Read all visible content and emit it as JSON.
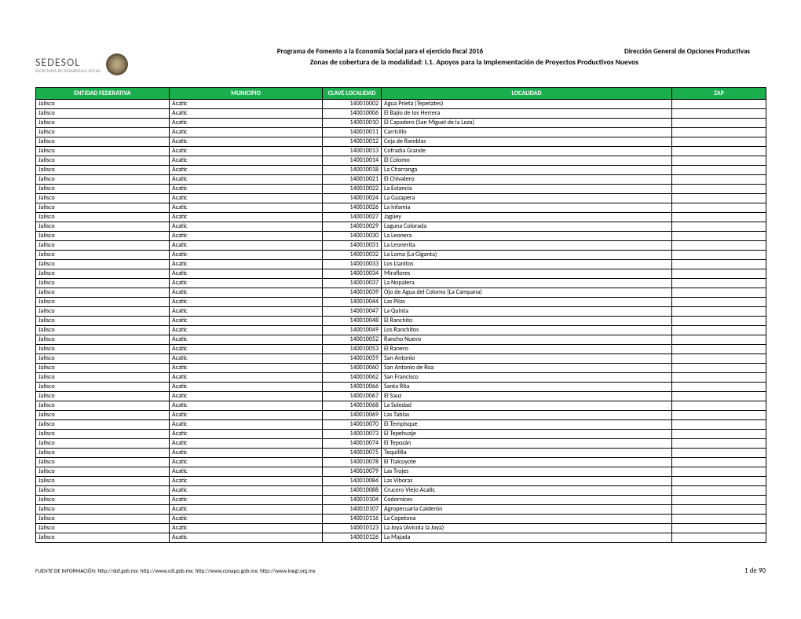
{
  "header": {
    "logo_text": "SEDESOL",
    "logo_sub": "SECRETARÍA DE DESARROLLO SOCIAL",
    "title_left": "Programa de Fomento a la Economía Social para el ejercicio fiscal 2016",
    "title_right": "Dirección General de Opciones Productivas",
    "subtitle": "Zonas de cobertura de la modalidad: I.1. Apoyos para la Implementación de Proyectos Productivos Nuevos"
  },
  "table": {
    "columns": [
      "ENTIDAD FEDERATIVA",
      "MUNICIPIO",
      "CLAVE LOCALIDAD",
      "LOCALIDAD",
      "ZAP"
    ],
    "header_bg": "#1aae4f",
    "header_color": "#ffffff",
    "border_color": "#000000",
    "rows": [
      [
        "Jalisco",
        "Acatic",
        "140010002",
        "Agua Prieta (Tepetates)",
        ""
      ],
      [
        "Jalisco",
        "Acatic",
        "140010006",
        "El Bajío de los Herrera",
        ""
      ],
      [
        "Jalisco",
        "Acatic",
        "140010010",
        "El Capadero (San Miguel de la Loza)",
        ""
      ],
      [
        "Jalisco",
        "Acatic",
        "140010011",
        "Carricillo",
        ""
      ],
      [
        "Jalisco",
        "Acatic",
        "140010012",
        "Ceja de Ramblas",
        ""
      ],
      [
        "Jalisco",
        "Acatic",
        "140010013",
        "Cofradía Grande",
        ""
      ],
      [
        "Jalisco",
        "Acatic",
        "140010014",
        "El Colomo",
        ""
      ],
      [
        "Jalisco",
        "Acatic",
        "140010018",
        "La Charranga",
        ""
      ],
      [
        "Jalisco",
        "Acatic",
        "140010021",
        "El Chivatero",
        ""
      ],
      [
        "Jalisco",
        "Acatic",
        "140010022",
        "La Estancia",
        ""
      ],
      [
        "Jalisco",
        "Acatic",
        "140010024",
        "La Gazapera",
        ""
      ],
      [
        "Jalisco",
        "Acatic",
        "140010026",
        "La Infamia",
        ""
      ],
      [
        "Jalisco",
        "Acatic",
        "140010027",
        "Jagüey",
        ""
      ],
      [
        "Jalisco",
        "Acatic",
        "140010029",
        "Laguna Colorada",
        ""
      ],
      [
        "Jalisco",
        "Acatic",
        "140010030",
        "La Leonera",
        ""
      ],
      [
        "Jalisco",
        "Acatic",
        "140010031",
        "La Leonerita",
        ""
      ],
      [
        "Jalisco",
        "Acatic",
        "140010032",
        "La Loma (La Giganta)",
        ""
      ],
      [
        "Jalisco",
        "Acatic",
        "140010033",
        "Los Llanitos",
        ""
      ],
      [
        "Jalisco",
        "Acatic",
        "140010034",
        "Miraflores",
        ""
      ],
      [
        "Jalisco",
        "Acatic",
        "140010037",
        "La Nopalera",
        ""
      ],
      [
        "Jalisco",
        "Acatic",
        "140010039",
        "Ojo de Agua del Colomo (La Campana)",
        ""
      ],
      [
        "Jalisco",
        "Acatic",
        "140010044",
        "Las Pilas",
        ""
      ],
      [
        "Jalisco",
        "Acatic",
        "140010047",
        "La Quinta",
        ""
      ],
      [
        "Jalisco",
        "Acatic",
        "140010048",
        "El Ranchito",
        ""
      ],
      [
        "Jalisco",
        "Acatic",
        "140010049",
        "Los Ranchitos",
        ""
      ],
      [
        "Jalisco",
        "Acatic",
        "140010052",
        "Rancho Nuevo",
        ""
      ],
      [
        "Jalisco",
        "Acatic",
        "140010053",
        "El Ranero",
        ""
      ],
      [
        "Jalisco",
        "Acatic",
        "140010059",
        "San Antonio",
        ""
      ],
      [
        "Jalisco",
        "Acatic",
        "140010060",
        "San Antonio de Roa",
        ""
      ],
      [
        "Jalisco",
        "Acatic",
        "140010062",
        "San Francisco",
        ""
      ],
      [
        "Jalisco",
        "Acatic",
        "140010066",
        "Santa Rita",
        ""
      ],
      [
        "Jalisco",
        "Acatic",
        "140010067",
        "El Sauz",
        ""
      ],
      [
        "Jalisco",
        "Acatic",
        "140010068",
        "La Soledad",
        ""
      ],
      [
        "Jalisco",
        "Acatic",
        "140010069",
        "Las Tablas",
        ""
      ],
      [
        "Jalisco",
        "Acatic",
        "140010070",
        "El Tempisque",
        ""
      ],
      [
        "Jalisco",
        "Acatic",
        "140010073",
        "El Tepehuaje",
        ""
      ],
      [
        "Jalisco",
        "Acatic",
        "140010074",
        "El Tepozán",
        ""
      ],
      [
        "Jalisco",
        "Acatic",
        "140010075",
        "Tequililla",
        ""
      ],
      [
        "Jalisco",
        "Acatic",
        "140010078",
        "El Tlalcoyote",
        ""
      ],
      [
        "Jalisco",
        "Acatic",
        "140010079",
        "Las Trojes",
        ""
      ],
      [
        "Jalisco",
        "Acatic",
        "140010084",
        "Las Víboras",
        ""
      ],
      [
        "Jalisco",
        "Acatic",
        "140010088",
        "Crucero Viejo Acatic",
        ""
      ],
      [
        "Jalisco",
        "Acatic",
        "140010104",
        "Codornices",
        ""
      ],
      [
        "Jalisco",
        "Acatic",
        "140010107",
        "Agropecuaria Calderón",
        ""
      ],
      [
        "Jalisco",
        "Acatic",
        "140010116",
        "La Copetona",
        ""
      ],
      [
        "Jalisco",
        "Acatic",
        "140010123",
        "La Joya (Avícola la Joya)",
        ""
      ],
      [
        "Jalisco",
        "Acatic",
        "140010126",
        "La Majada",
        ""
      ]
    ]
  },
  "footer": {
    "source": "FUENTE DE INFORMACIÓN: http://dof.gob.mx; http://www.cdi.gob.mx; http://www.conapo.gob.mx; http://www.inegi.org.mx",
    "page": "1 de 90"
  }
}
